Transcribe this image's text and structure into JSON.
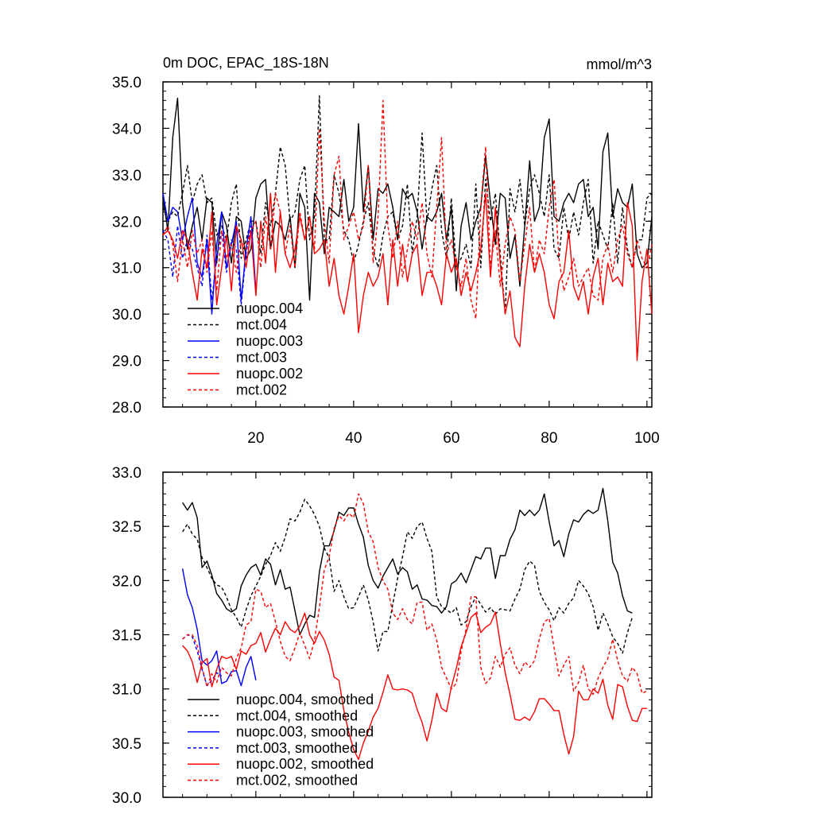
{
  "chart_data": [
    {
      "type": "line",
      "title": "0m DOC, EPAC_18S-18N",
      "units_label": "mmol/m^3",
      "xlim": [
        1,
        101
      ],
      "ylim": [
        28,
        35
      ],
      "x_ticks": [
        20,
        40,
        60,
        80,
        100
      ],
      "y_ticks": [
        "35.0",
        "34.0",
        "33.0",
        "32.0",
        "31.0",
        "30.0",
        "29.0",
        "28.0"
      ],
      "y_tick_values": [
        35,
        34,
        33,
        32,
        31,
        30,
        29,
        28
      ],
      "legend_position": "lower-left",
      "series": [
        {
          "name": "nuopc.004",
          "color": "#000000",
          "style": "solid",
          "x_start": 1,
          "values": [
            32.5,
            31.8,
            33.8,
            34.65,
            32.4,
            31.4,
            31.9,
            32.3,
            31.6,
            32.5,
            32.4,
            31.1,
            32.2,
            31.9,
            31.1,
            32.1,
            32.0,
            31.2,
            31.4,
            32.5,
            32.8,
            32.9,
            31.4,
            32.0,
            31.9,
            31.6,
            32.1,
            31.0,
            32.6,
            32.3,
            30.3,
            32.6,
            32.4,
            31.3,
            32.3,
            32.2,
            32.1,
            32.9,
            32.0,
            32.3,
            34.1,
            32.2,
            33.2,
            31.6,
            32.7,
            32.6,
            32.8,
            32.3,
            31.6,
            32.7,
            32.5,
            32.6,
            32.2,
            31.4,
            32.1,
            32.0,
            32.2,
            32.6,
            31.6,
            32.3,
            30.5,
            31.9,
            32.4,
            31.6,
            32.0,
            32.3,
            33.4,
            32.4,
            31.5,
            32.6,
            32.5,
            31.2,
            31.7,
            30.6,
            31.9,
            33.3,
            32.0,
            32.3,
            33.8,
            34.2,
            32.1,
            32.0,
            32.4,
            32.6,
            32.4,
            32.8,
            32.9,
            32.1,
            32.3,
            31.4,
            33.5,
            33.9,
            32.1,
            32.7,
            32.4,
            32.3,
            32.8,
            31.3,
            31.0,
            31.1,
            32.1
          ]
        },
        {
          "name": "mct.004",
          "color": "#000000",
          "style": "dashed",
          "x_start": 1,
          "values": [
            32.3,
            32.0,
            32.2,
            32.1,
            32.6,
            33.2,
            32.4,
            32.8,
            33.0,
            32.4,
            32.5,
            31.7,
            31.9,
            31.6,
            32.4,
            32.8,
            31.2,
            31.6,
            32.0,
            32.0,
            31.3,
            32.4,
            31.9,
            32.6,
            33.6,
            33.2,
            32.0,
            32.2,
            32.9,
            33.2,
            31.6,
            32.1,
            34.7,
            31.6,
            31.6,
            33.0,
            32.6,
            31.8,
            31.6,
            31.1,
            31.5,
            32.0,
            32.4,
            31.4,
            31.0,
            31.7,
            32.1,
            32.2,
            31.6,
            31.9,
            32.8,
            31.3,
            32.1,
            33.9,
            32.0,
            32.7,
            33.2,
            31.8,
            31.2,
            32.5,
            31.0,
            31.2,
            31.5,
            31.0,
            32.8,
            31.0,
            32.9,
            32.0,
            32.6,
            31.3,
            30.0,
            32.7,
            32.2,
            32.9,
            31.9,
            32.7,
            33.0,
            32.6,
            32.1,
            33.0,
            31.4,
            31.2,
            32.3,
            31.6,
            32.2,
            31.7,
            32.4,
            32.9,
            31.1,
            32.0,
            31.7,
            31.4,
            32.4,
            31.1,
            32.3,
            31.4,
            31.0,
            31.6,
            31.6,
            32.5,
            32.6
          ]
        },
        {
          "name": "nuopc.003",
          "color": "#0000ff",
          "style": "solid",
          "x_start": 1,
          "values": [
            32.6,
            32.0,
            32.3,
            32.2,
            31.6,
            32.1,
            32.5,
            31.1,
            30.8,
            31.6,
            30.0,
            31.5,
            32.2,
            31.0,
            31.5,
            32.0,
            30.3,
            31.4,
            32.1,
            30.5
          ]
        },
        {
          "name": "mct.003",
          "color": "#0000ff",
          "style": "dashed",
          "x_start": 1,
          "values": [
            31.8,
            31.6,
            30.8,
            31.9,
            31.2,
            31.6,
            31.4,
            31.0,
            30.6,
            31.7,
            30.3,
            31.2,
            31.8,
            30.9,
            31.6,
            31.4,
            30.2,
            31.3,
            31.9
          ]
        },
        {
          "name": "nuopc.002",
          "color": "#ff0000",
          "style": "solid",
          "x_start": 1,
          "values": [
            31.7,
            31.8,
            31.6,
            31.2,
            31.8,
            31.6,
            30.9,
            30.3,
            31.4,
            31.0,
            32.2,
            30.2,
            31.0,
            31.7,
            30.5,
            31.9,
            31.6,
            31.0,
            31.8,
            30.4,
            32.0,
            31.1,
            32.6,
            30.9,
            32.2,
            31.3,
            31.0,
            31.4,
            32.1,
            31.6,
            32.1,
            31.3,
            31.4,
            31.6,
            30.6,
            31.2,
            30.4,
            30.0,
            30.6,
            31.3,
            29.6,
            30.4,
            30.9,
            30.6,
            30.8,
            31.3,
            30.2,
            31.6,
            30.6,
            31.5,
            30.7,
            31.3,
            31.5,
            30.4,
            30.9,
            30.9,
            30.6,
            30.2,
            31.3,
            30.9,
            31.2,
            30.4,
            30.9,
            30.5,
            30.9,
            31.4,
            32.6,
            30.8,
            32.3,
            31.1,
            30.0,
            30.5,
            29.5,
            29.3,
            30.6,
            31.5,
            30.9,
            31.3,
            30.9,
            30.2,
            29.9,
            30.7,
            30.9,
            31.8,
            30.6,
            30.3,
            30.7,
            30.0,
            30.8,
            31.2,
            30.2,
            31.1,
            30.7,
            30.8,
            30.6,
            32.4,
            31.9,
            29.0,
            30.7,
            31.4,
            30.0
          ]
        },
        {
          "name": "mct.002",
          "color": "#ff0000",
          "style": "dashed",
          "x_start": 1,
          "values": [
            31.7,
            31.9,
            31.5,
            30.7,
            31.6,
            31.0,
            31.8,
            31.3,
            31.6,
            30.9,
            31.8,
            30.5,
            31.8,
            31.2,
            31.5,
            30.9,
            31.6,
            31.4,
            31.8,
            32.0,
            31.0,
            32.1,
            31.4,
            32.6,
            32.2,
            31.3,
            31.9,
            31.0,
            32.2,
            31.6,
            32.1,
            31.4,
            34.0,
            32.0,
            31.1,
            33.0,
            33.4,
            31.6,
            31.9,
            32.2,
            31.6,
            31.9,
            33.2,
            31.1,
            32.1,
            34.6,
            31.9,
            31.2,
            32.0,
            30.8,
            31.4,
            32.0,
            31.6,
            32.4,
            31.3,
            30.8,
            32.3,
            33.8,
            31.3,
            31.6,
            31.0,
            30.6,
            31.2,
            30.3,
            29.9,
            32.3,
            33.6,
            31.0,
            31.8,
            30.6,
            31.5,
            32.1,
            31.8,
            30.7,
            31.5,
            32.3,
            30.9,
            31.6,
            31.3,
            32.3,
            32.9,
            31.2,
            30.5,
            30.8,
            31.2,
            30.6,
            30.8,
            31.0,
            30.4,
            30.3,
            31.2,
            31.5,
            30.9,
            31.6,
            31.9,
            31.3,
            31.0,
            31.6,
            31.2,
            31.0,
            31.5
          ]
        }
      ]
    },
    {
      "type": "line",
      "title": "",
      "xlim": [
        1,
        101
      ],
      "ylim": [
        30,
        33
      ],
      "x_ticks": [
        20,
        40,
        60,
        80,
        100
      ],
      "y_ticks": [
        "33.0",
        "32.5",
        "32.0",
        "31.5",
        "31.0",
        "30.5",
        "30.0"
      ],
      "y_tick_values": [
        33,
        32.5,
        32,
        31.5,
        31,
        30.5,
        30
      ],
      "legend_position": "lower-left",
      "series": [
        {
          "name": "nuopc.004, smoothed",
          "color": "#000000",
          "style": "solid",
          "x_start": 5,
          "values": [
            32.72,
            32.65,
            32.72,
            32.58,
            32.12,
            32.18,
            32.05,
            31.88,
            31.82,
            31.74,
            31.71,
            31.74,
            31.95,
            32.05,
            32.12,
            32.15,
            32.05,
            32.2,
            32.15,
            31.96,
            32.1,
            31.92,
            31.94,
            31.72,
            31.5,
            31.6,
            31.68,
            31.66,
            32.08,
            32.32,
            32.32,
            32.46,
            32.63,
            32.6,
            32.67,
            32.67,
            32.52,
            32.4,
            32.14,
            32.0,
            31.93,
            32.04,
            32.12,
            32.2,
            32.06,
            32.12,
            32.08,
            31.92,
            31.96,
            31.83,
            31.82,
            31.77,
            31.76,
            31.7,
            31.76,
            31.97,
            32.0,
            32.07,
            31.98,
            32.1,
            32.22,
            32.2,
            32.3,
            32.3,
            32.02,
            32.23,
            32.23,
            32.38,
            32.47,
            32.65,
            32.6,
            32.65,
            32.6,
            32.65,
            32.8,
            32.54,
            32.32,
            32.37,
            32.22,
            32.43,
            32.56,
            32.54,
            32.61,
            32.65,
            32.62,
            32.65,
            32.85,
            32.55,
            32.17,
            32.07,
            31.86,
            31.72,
            31.7
          ]
        },
        {
          "name": "mct.004, smoothed",
          "color": "#000000",
          "style": "dashed",
          "x_start": 5,
          "values": [
            32.45,
            32.52,
            32.43,
            32.38,
            32.21,
            32.12,
            32.02,
            31.96,
            31.94,
            31.85,
            31.73,
            31.66,
            31.57,
            31.73,
            31.86,
            31.95,
            32.04,
            32.15,
            32.23,
            32.35,
            32.27,
            32.4,
            32.57,
            32.55,
            32.63,
            32.75,
            32.69,
            32.61,
            32.5,
            32.3,
            32.21,
            31.9,
            32.0,
            31.85,
            31.74,
            31.75,
            31.85,
            31.96,
            31.82,
            31.62,
            31.35,
            31.53,
            31.53,
            31.78,
            32.02,
            32.22,
            32.45,
            32.39,
            32.5,
            32.54,
            32.39,
            32.27,
            31.85,
            31.76,
            31.73,
            31.7,
            31.75,
            31.59,
            31.62,
            31.76,
            31.85,
            31.78,
            31.71,
            31.75,
            31.69,
            31.74,
            31.73,
            31.72,
            31.83,
            31.92,
            32.1,
            32.18,
            32.14,
            31.9,
            31.8,
            31.73,
            31.63,
            31.75,
            31.7,
            31.79,
            31.84,
            32.0,
            31.95,
            31.88,
            31.76,
            31.54,
            31.7,
            31.6,
            31.48,
            31.42,
            31.33,
            31.52,
            31.66
          ]
        },
        {
          "name": "nuopc.003, smoothed",
          "color": "#0000ff",
          "style": "solid",
          "x_start": 5,
          "values": [
            32.11,
            31.87,
            31.75,
            31.55,
            31.26,
            31.22,
            31.26,
            31.35,
            31.05,
            31.07,
            31.16,
            31.17,
            31.03,
            31.2,
            31.3,
            31.08
          ]
        },
        {
          "name": "mct.003, smoothed",
          "color": "#0000ff",
          "style": "dashed",
          "x_start": 5,
          "values": [
            31.46,
            31.5,
            31.48,
            31.35,
            31.18,
            31.03,
            31.08,
            31.15,
            31.12
          ]
        },
        {
          "name": "nuopc.002, smoothed",
          "color": "#ff0000",
          "style": "solid",
          "x_start": 5,
          "values": [
            31.4,
            31.35,
            31.25,
            31.06,
            31.24,
            31.28,
            31.02,
            31.18,
            31.3,
            31.28,
            31.3,
            31.18,
            31.35,
            31.32,
            31.4,
            31.42,
            31.52,
            31.34,
            31.46,
            31.56,
            31.5,
            31.62,
            31.55,
            31.52,
            31.58,
            31.7,
            31.5,
            31.42,
            31.53,
            31.45,
            31.32,
            31.11,
            31.08,
            30.8,
            30.6,
            30.44,
            30.35,
            30.5,
            30.61,
            30.74,
            30.82,
            30.97,
            31.13,
            31.0,
            30.99,
            31.0,
            30.99,
            30.96,
            30.81,
            30.69,
            30.52,
            30.71,
            30.96,
            30.82,
            30.79,
            31.02,
            31.19,
            31.39,
            31.52,
            31.66,
            31.7,
            31.52,
            31.57,
            31.6,
            31.71,
            31.42,
            31.15,
            30.95,
            30.72,
            30.71,
            30.74,
            30.71,
            30.79,
            30.91,
            30.91,
            30.86,
            30.8,
            30.8,
            30.58,
            30.4,
            30.56,
            30.98,
            30.9,
            30.9,
            31.0,
            30.96,
            31.09,
            30.85,
            30.72,
            31.04,
            31.02,
            30.84,
            30.71,
            30.7,
            30.82,
            30.82
          ]
        },
        {
          "name": "mct.002, smoothed",
          "color": "#ff0000",
          "style": "dashed",
          "x_start": 5,
          "values": [
            31.46,
            31.5,
            31.5,
            31.4,
            31.2,
            31.02,
            31.14,
            31.06,
            31.2,
            31.15,
            31.12,
            31.28,
            31.38,
            31.59,
            31.62,
            31.92,
            31.9,
            31.75,
            31.79,
            31.62,
            31.44,
            31.3,
            31.26,
            31.38,
            31.52,
            31.4,
            31.28,
            31.45,
            31.75,
            32.1,
            32.22,
            32.48,
            32.6,
            32.55,
            32.62,
            32.58,
            32.8,
            32.71,
            32.45,
            32.36,
            32.12,
            32.0,
            31.92,
            31.7,
            31.64,
            31.74,
            31.64,
            31.6,
            31.8,
            31.8,
            31.54,
            31.6,
            31.45,
            31.2,
            31.1,
            31.0,
            31.05,
            31.35,
            31.55,
            31.85,
            31.85,
            31.2,
            31.05,
            31.1,
            31.3,
            31.2,
            31.32,
            31.38,
            31.22,
            31.14,
            31.25,
            31.2,
            31.26,
            31.46,
            31.62,
            31.65,
            31.38,
            31.12,
            31.22,
            31.3,
            30.98,
            31.06,
            31.22,
            31.0,
            30.95,
            31.1,
            31.2,
            31.28,
            31.46,
            31.26,
            31.12,
            31.07,
            31.2,
            31.14,
            30.96,
            30.98
          ]
        }
      ]
    }
  ]
}
